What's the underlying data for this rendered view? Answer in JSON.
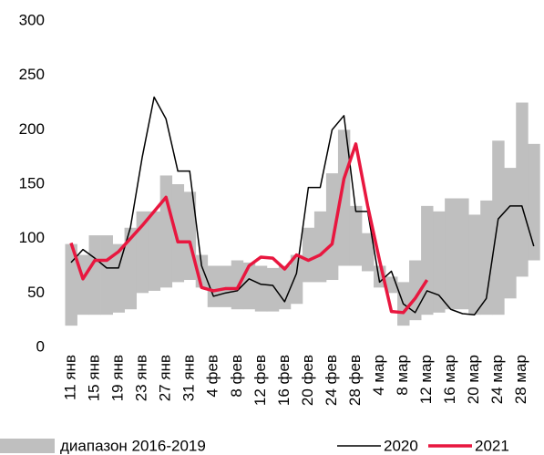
{
  "chart_data": {
    "type": "band-line",
    "categories": [
      "11 янв",
      null,
      "15 янв",
      null,
      "19 янв",
      null,
      "23 янв",
      null,
      "27 янв",
      null,
      "31 янв",
      null,
      "4 фев",
      null,
      "8 фев",
      null,
      "12 фев",
      null,
      "16 фев",
      null,
      "20 фев",
      null,
      "24 фев",
      null,
      "28 фев",
      null,
      "4 мар",
      null,
      "8 мар",
      null,
      "12 мар",
      null,
      "16 мар",
      null,
      "20 мар",
      null,
      "24 мар",
      null,
      "28 мар",
      null
    ],
    "band": {
      "name": "диапазон 2016-2019",
      "color": "#bfbfbf",
      "low": [
        20,
        30,
        30,
        30,
        32,
        35,
        50,
        52,
        55,
        60,
        62,
        55,
        37,
        37,
        35,
        35,
        33,
        33,
        35,
        40,
        60,
        60,
        62,
        75,
        75,
        70,
        55,
        50,
        20,
        25,
        30,
        32,
        35,
        35,
        30,
        30,
        30,
        45,
        65,
        80
      ],
      "high": [
        95,
        85,
        103,
        103,
        95,
        110,
        125,
        125,
        158,
        150,
        143,
        85,
        75,
        75,
        80,
        78,
        75,
        73,
        75,
        85,
        110,
        125,
        160,
        200,
        130,
        105,
        75,
        65,
        60,
        80,
        130,
        125,
        137,
        137,
        122,
        135,
        190,
        165,
        225,
        187
      ]
    },
    "series": [
      {
        "name": "2020",
        "color": "#000000",
        "values": [
          78,
          90,
          82,
          73,
          73,
          110,
          175,
          230,
          210,
          162,
          162,
          75,
          47,
          50,
          52,
          63,
          58,
          57,
          42,
          68,
          147,
          147,
          200,
          213,
          125,
          125,
          60,
          70,
          40,
          32,
          52,
          48,
          35,
          31,
          30,
          45,
          118,
          130,
          130,
          93
        ]
      },
      {
        "name": "2021",
        "color": "#e8173f",
        "values": [
          96,
          63,
          80,
          80,
          88,
          100,
          112,
          125,
          138,
          97,
          97,
          55,
          52,
          54,
          54,
          75,
          83,
          82,
          72,
          85,
          80,
          85,
          95,
          155,
          187,
          130,
          80,
          33,
          32,
          45,
          62,
          null,
          null,
          null,
          null,
          null,
          null,
          null,
          null,
          null
        ]
      }
    ],
    "ylim": [
      0,
      300
    ],
    "yticks": [
      0,
      50,
      100,
      150,
      200,
      250,
      300
    ],
    "grid": false
  }
}
